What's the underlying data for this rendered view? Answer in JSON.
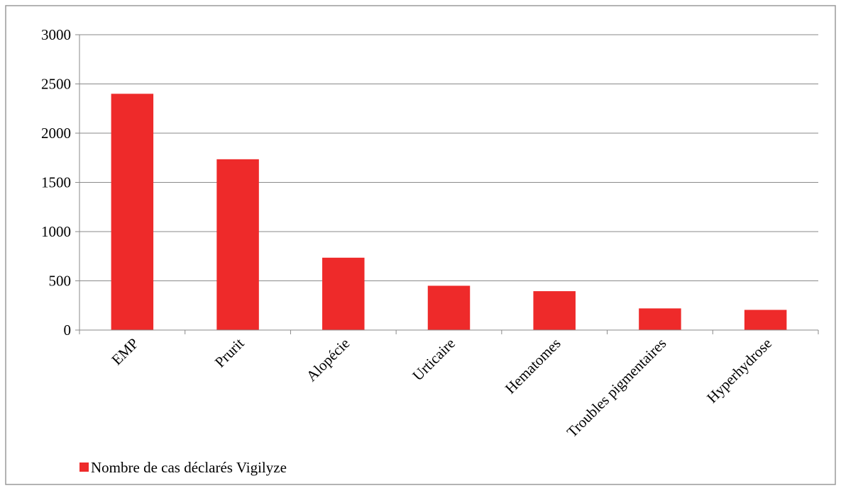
{
  "chart_data": {
    "type": "bar",
    "categories": [
      "EMP",
      "Prurit",
      "Alopécie",
      "Urticaire",
      "Hematomes",
      "Troubles pigmentaires",
      "Hyperhydrose"
    ],
    "series": [
      {
        "name": "Nombre de cas déclarés Vigilyze",
        "values": [
          2400,
          1735,
          735,
          450,
          395,
          220,
          205
        ],
        "color": "#ee2a2a"
      }
    ],
    "title": "",
    "xlabel": "",
    "ylabel": "",
    "ylim": [
      0,
      3000
    ],
    "yticks": [
      0,
      500,
      1000,
      1500,
      2000,
      2500,
      3000
    ],
    "grid": "horizontal",
    "legend_position": "bottom-left"
  },
  "colors": {
    "bar": "#ee2a2a",
    "grid": "#8a8a8a",
    "frame": "#9a9a9a"
  }
}
